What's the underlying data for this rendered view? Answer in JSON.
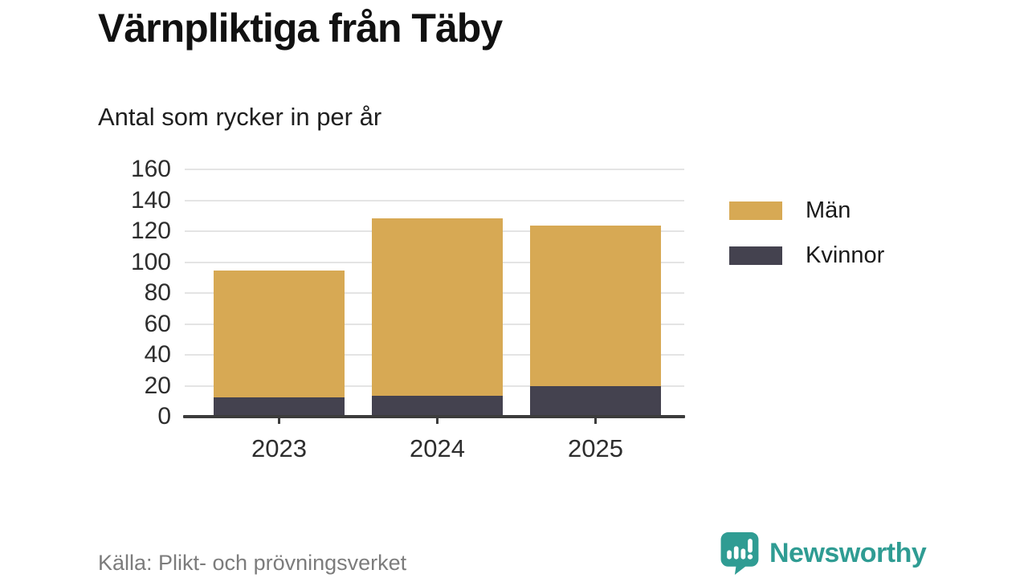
{
  "title": "Värnpliktiga från Täby",
  "subtitle": "Antal som rycker in per år",
  "source": "Källa: Plikt- och prövningsverket",
  "brand": {
    "name": "Newsworthy",
    "color": "#2f9c93",
    "icon": "speech-bubble-bar-chart-icon"
  },
  "colors": {
    "men": "#d7a954",
    "women": "#44424f",
    "grid": "#e4e4e4",
    "axis": "#3c3c3c",
    "tick_text": "#2d2d2d",
    "source_text": "#7c7c7c"
  },
  "chart_data": {
    "type": "bar",
    "stacked": true,
    "title": "Värnpliktiga från Täby",
    "subtitle": "Antal som rycker in per år",
    "categories": [
      "2023",
      "2024",
      "2025"
    ],
    "series": [
      {
        "name": "Män",
        "color": "#d7a954",
        "values": [
          82,
          115,
          104
        ]
      },
      {
        "name": "Kvinnor",
        "color": "#44424f",
        "values": [
          12,
          13,
          19
        ]
      }
    ],
    "totals": [
      94,
      128,
      123
    ],
    "xlabel": "",
    "ylabel": "",
    "ylim": [
      0,
      160
    ],
    "yticks": [
      0,
      20,
      40,
      60,
      80,
      100,
      120,
      140,
      160
    ],
    "grid": true,
    "legend_position": "right",
    "source": "Källa: Plikt- och prövningsverket"
  }
}
